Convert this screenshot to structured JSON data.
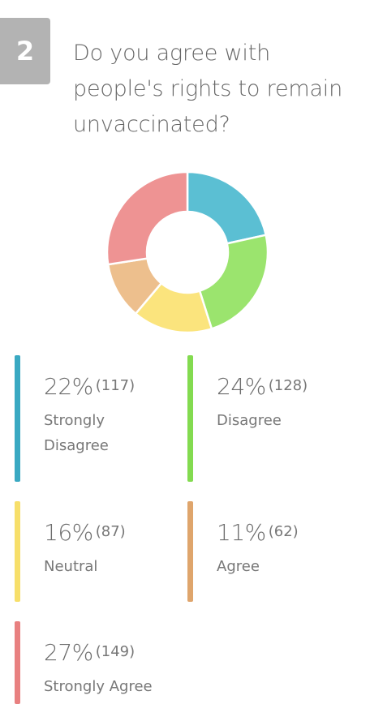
{
  "question": {
    "number": "2",
    "text": "Do you agree with people's rights to remain unvaccinated?"
  },
  "chart_data": {
    "type": "pie",
    "donut": true,
    "categories": [
      "Strongly Disagree",
      "Disagree",
      "Neutral",
      "Agree",
      "Strongly Agree"
    ],
    "values": [
      117,
      128,
      87,
      62,
      149
    ],
    "percentages": [
      "22%",
      "24%",
      "16%",
      "11%",
      "27%"
    ],
    "counts": [
      "(117)",
      "(128)",
      "(87)",
      "(62)",
      "(149)"
    ],
    "colors": [
      "#5bbfd3",
      "#9be46e",
      "#fbe47d",
      "#edbf8d",
      "#ee9393"
    ],
    "bar_colors": [
      "#3aa9c2",
      "#83db50",
      "#f7df6a",
      "#dfa56c",
      "#e88080"
    ]
  }
}
